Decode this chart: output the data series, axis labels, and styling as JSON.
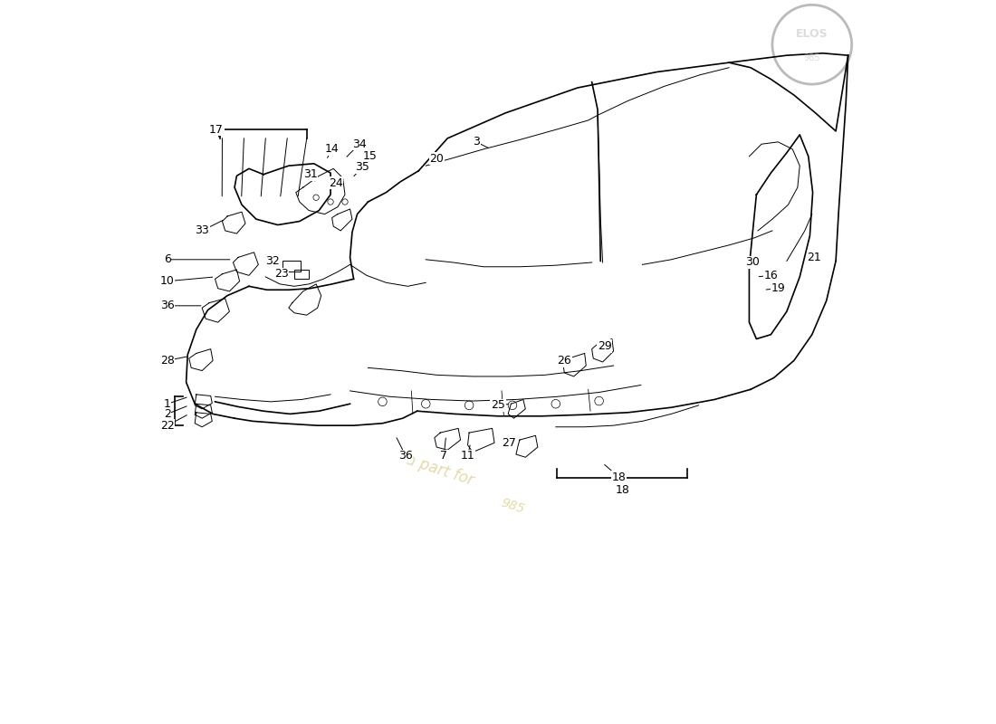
{
  "background_color": "#ffffff",
  "watermark_color": "#d4c87a",
  "logo_color": "#cccccc",
  "font_size_label": 9,
  "line_color": "#000000",
  "label_color": "#000000",
  "lw_car": 1.2,
  "lw_detail": 0.7
}
